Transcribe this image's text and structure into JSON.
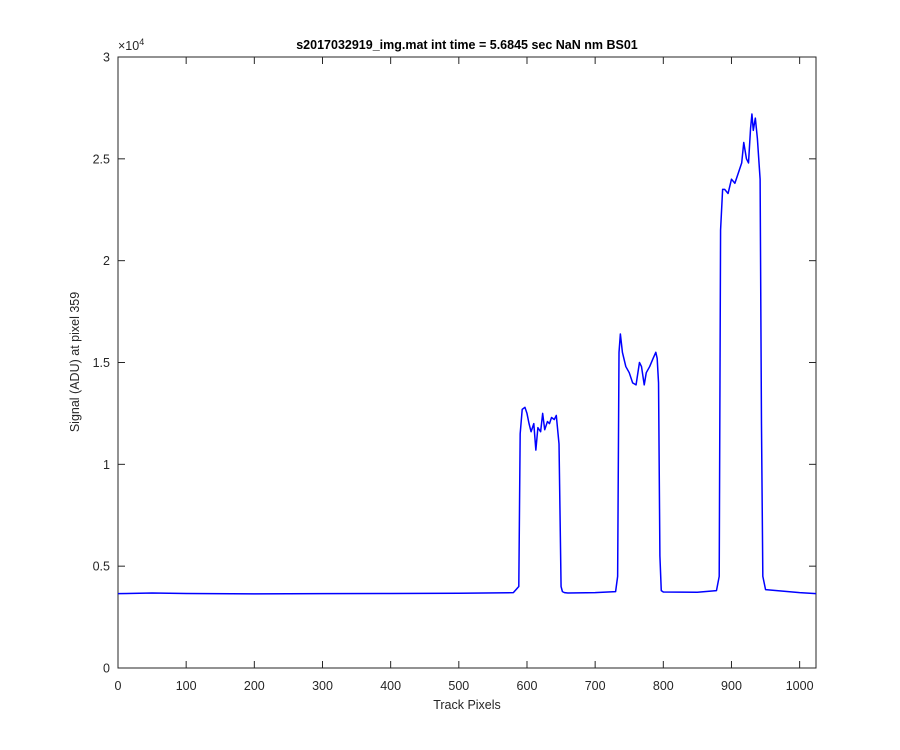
{
  "chart_data": {
    "type": "line",
    "title": "s2017032919_img.mat int time = 5.6845 sec  NaN nm BS01",
    "xlabel": "Track Pixels",
    "ylabel": "Signal (ADU) at pixel 359",
    "xlim": [
      0,
      1024
    ],
    "ylim": [
      0,
      30000
    ],
    "xticks": [
      0,
      100,
      200,
      300,
      400,
      500,
      600,
      700,
      800,
      900,
      1000
    ],
    "xtick_labels": [
      "0",
      "100",
      "200",
      "300",
      "400",
      "500",
      "600",
      "700",
      "800",
      "900",
      "1000"
    ],
    "yticks": [
      0,
      5000,
      10000,
      15000,
      20000,
      25000,
      30000
    ],
    "ytick_labels": [
      "0",
      "0.5",
      "1",
      "1.5",
      "2",
      "2.5",
      "3"
    ],
    "y_exponent_label": "×10",
    "y_exponent_power": "4",
    "grid": false,
    "series": [
      {
        "color": "#0000ff",
        "x": [
          0,
          50,
          100,
          200,
          300,
          400,
          500,
          580,
          588,
          590,
          593,
          597,
          600,
          603,
          606,
          610,
          613,
          616,
          620,
          623,
          626,
          630,
          633,
          636,
          640,
          643,
          647,
          650,
          652,
          655,
          660,
          700,
          730,
          733,
          735,
          737,
          740,
          745,
          750,
          755,
          760,
          765,
          768,
          772,
          775,
          780,
          785,
          789,
          791,
          793,
          795,
          797,
          800,
          850,
          878,
          882,
          884,
          887,
          890,
          895,
          900,
          905,
          910,
          915,
          918,
          922,
          925,
          928,
          930,
          932,
          935,
          938,
          940,
          942,
          944,
          946,
          950,
          1000,
          1024
        ],
        "y": [
          3650,
          3680,
          3660,
          3640,
          3650,
          3660,
          3670,
          3700,
          4000,
          11500,
          12700,
          12800,
          12500,
          12000,
          11600,
          12000,
          10700,
          11800,
          11600,
          12500,
          11700,
          12100,
          12000,
          12300,
          12200,
          12400,
          11000,
          4000,
          3750,
          3700,
          3680,
          3700,
          3750,
          4500,
          15500,
          16400,
          15500,
          14800,
          14500,
          14000,
          13900,
          15000,
          14800,
          13900,
          14500,
          14800,
          15200,
          15500,
          15200,
          14000,
          5500,
          3800,
          3730,
          3720,
          3800,
          4500,
          21500,
          23500,
          23500,
          23300,
          24000,
          23800,
          24300,
          24800,
          25800,
          25000,
          24800,
          26500,
          27200,
          26400,
          27000,
          26000,
          25000,
          24000,
          12000,
          4500,
          3850,
          3700,
          3650
        ]
      }
    ]
  }
}
